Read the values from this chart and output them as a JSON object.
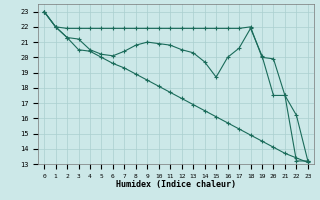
{
  "xlabel": "Humidex (Indice chaleur)",
  "bg_color": "#cce8e8",
  "grid_color": "#aacfcf",
  "line_color": "#1a6b5a",
  "xlim": [
    -0.5,
    23.5
  ],
  "ylim": [
    13,
    23.5
  ],
  "yticks": [
    13,
    14,
    15,
    16,
    17,
    18,
    19,
    20,
    21,
    22,
    23
  ],
  "xticks": [
    0,
    1,
    2,
    3,
    4,
    5,
    6,
    7,
    8,
    9,
    10,
    11,
    12,
    13,
    14,
    15,
    16,
    17,
    18,
    19,
    20,
    21,
    22,
    23
  ],
  "line1_x": [
    0,
    1,
    2,
    3,
    4,
    5,
    6,
    7,
    8,
    9,
    10,
    11,
    12,
    13,
    14,
    15,
    16,
    17,
    18,
    19,
    20,
    21,
    22,
    23
  ],
  "line1_y": [
    23.0,
    22.0,
    21.9,
    21.9,
    21.9,
    21.9,
    21.9,
    21.9,
    21.9,
    21.9,
    21.9,
    21.9,
    21.9,
    21.9,
    21.9,
    21.9,
    21.9,
    21.9,
    22.0,
    20.0,
    19.9,
    17.5,
    16.2,
    13.2
  ],
  "line2_x": [
    0,
    1,
    2,
    3,
    4,
    5,
    6,
    7,
    8,
    9,
    10,
    11,
    12,
    13,
    14,
    15,
    16,
    17,
    18,
    19,
    20,
    21,
    22,
    23
  ],
  "line2_y": [
    23.0,
    22.0,
    21.3,
    21.2,
    20.5,
    20.2,
    20.1,
    20.4,
    20.8,
    21.0,
    20.9,
    20.8,
    20.5,
    20.3,
    19.7,
    18.7,
    20.0,
    20.6,
    21.9,
    20.1,
    17.5,
    17.5,
    13.2,
    13.2
  ],
  "line3_x": [
    0,
    1,
    2,
    3,
    4,
    5,
    6,
    7,
    8,
    9,
    10,
    11,
    12,
    13,
    14,
    15,
    16,
    17,
    18,
    19,
    20,
    21,
    22,
    23
  ],
  "line3_y": [
    23.0,
    22.0,
    21.3,
    20.5,
    20.4,
    20.0,
    19.6,
    19.3,
    18.9,
    18.5,
    18.1,
    17.7,
    17.3,
    16.9,
    16.5,
    16.1,
    15.7,
    15.3,
    14.9,
    14.5,
    14.1,
    13.7,
    13.4,
    13.1
  ]
}
